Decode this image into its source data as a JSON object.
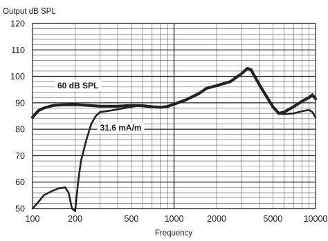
{
  "chart_data": {
    "type": "line",
    "title": "Output dB SPL",
    "xlabel": "Frequency",
    "ylabel": "",
    "xscale": "log",
    "xlim": [
      100,
      10000
    ],
    "ylim": [
      50,
      120
    ],
    "x_ticks": [
      100,
      200,
      500,
      1000,
      2000,
      5000,
      10000
    ],
    "x_tick_labels": [
      "100",
      "200",
      "500",
      "1000",
      "2000",
      "5000",
      "10000"
    ],
    "y_ticks": [
      50,
      60,
      70,
      80,
      90,
      100,
      110,
      120
    ],
    "y_tick_labels": [
      "50",
      "60",
      "70",
      "80",
      "90",
      "100",
      "110",
      "120"
    ],
    "grid": true,
    "line_color": "#222222",
    "series": [
      {
        "name": "60 dB SPL",
        "x": [
          100,
          110,
          120,
          140,
          160,
          200,
          250,
          300,
          400,
          500,
          600,
          700,
          800,
          900,
          1000,
          1200,
          1500,
          1700,
          2000,
          2500,
          3000,
          3300,
          3500,
          3800,
          4200,
          5000,
          5500,
          6000,
          7000,
          8000,
          9000,
          9500,
          10000
        ],
        "y": [
          84.5,
          87,
          88,
          89,
          89.2,
          89.3,
          89,
          88.7,
          88.7,
          89,
          88.9,
          88.5,
          88.3,
          88.6,
          89.5,
          91,
          93.5,
          95.5,
          96.5,
          98,
          101,
          103,
          102.5,
          99,
          95,
          88.5,
          86,
          86.5,
          88.5,
          90.5,
          92,
          93,
          91.5
        ]
      },
      {
        "name": "31.6 mA/m",
        "x": [
          100,
          110,
          120,
          130,
          150,
          170,
          180,
          190,
          200,
          210,
          220,
          240,
          260,
          280,
          300,
          350,
          400,
          500,
          600,
          700,
          800,
          900,
          1000,
          1200,
          1500,
          1700,
          2000,
          2500,
          3000,
          3300,
          3500,
          3800,
          4200,
          5000,
          5500,
          6000,
          7000,
          8000,
          9000,
          9500,
          10000
        ],
        "y": [
          50,
          52.5,
          55,
          56,
          57.5,
          58,
          56,
          50,
          49,
          60,
          68,
          76,
          82,
          85,
          86.5,
          87,
          87.5,
          88.5,
          89,
          88.5,
          88.2,
          88.6,
          89.3,
          90.8,
          93.4,
          95.4,
          96.4,
          98,
          101,
          103.2,
          102.6,
          99.2,
          95,
          88.2,
          86,
          85.7,
          86,
          86.8,
          87.3,
          86.5,
          84.5
        ]
      }
    ],
    "annotations": [
      {
        "text": "60 dB SPL",
        "x": 150,
        "y": 96.5
      },
      {
        "text": "31.6 mA/m",
        "x": 300,
        "y": 80.5
      }
    ]
  }
}
